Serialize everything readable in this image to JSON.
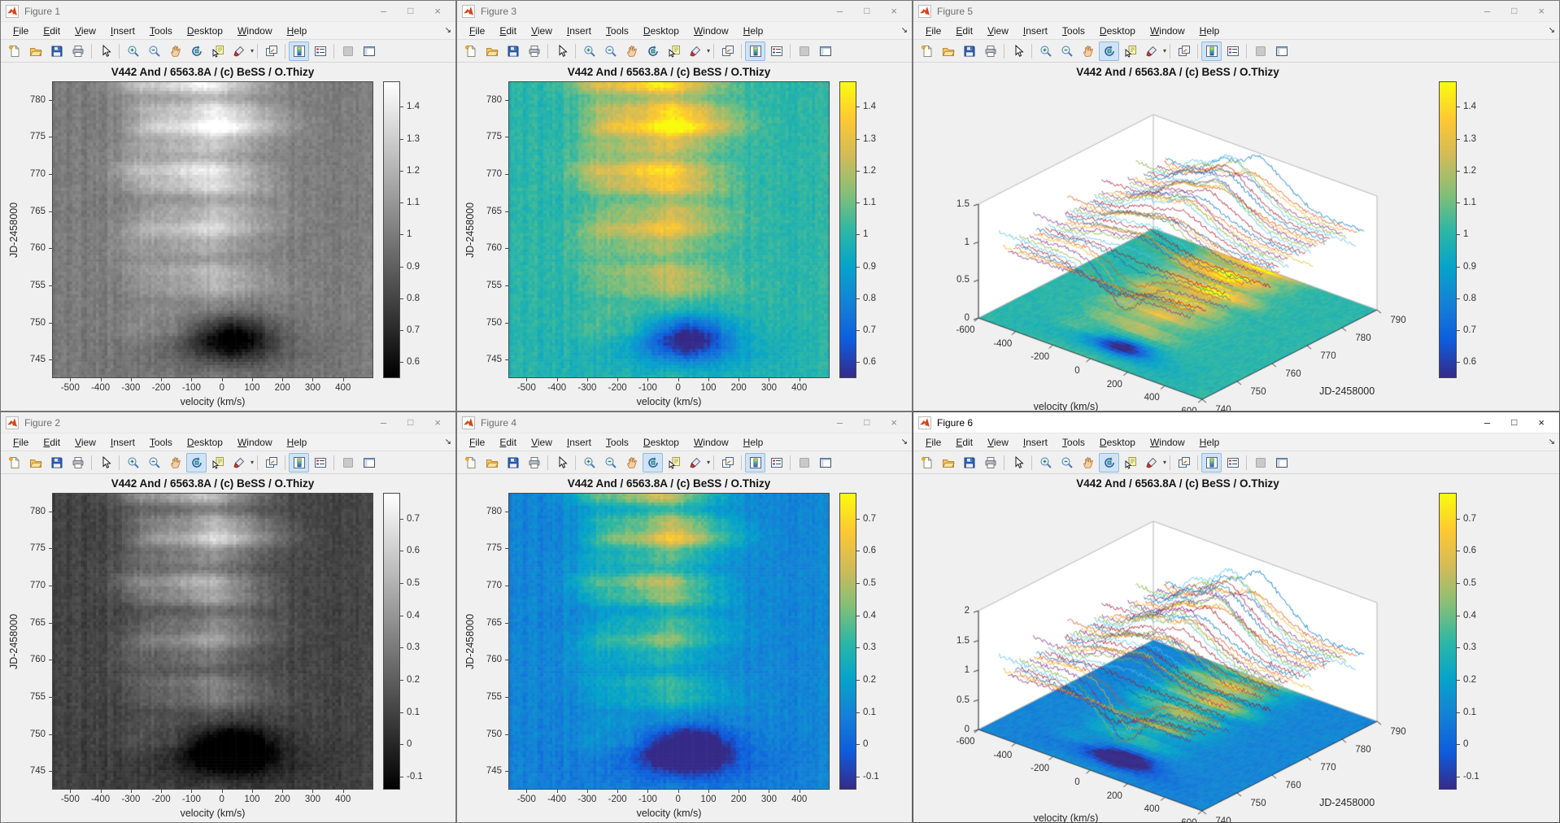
{
  "shared": {
    "menu_items": [
      "File",
      "Edit",
      "View",
      "Insert",
      "Tools",
      "Desktop",
      "Window",
      "Help"
    ],
    "menu_overflow_glyph": "↘",
    "dropdown_caret": "▾",
    "window_buttons": {
      "minimize": "–",
      "maximize": "□",
      "close": "×"
    },
    "toolbar_buttons": [
      "new-file",
      "open-folder",
      "save",
      "print",
      "separator",
      "cursor",
      "separator",
      "zoom-in",
      "zoom-out",
      "pan",
      "rotate-3d",
      "data-cursor",
      "brush",
      "separator",
      "link-plots",
      "separator",
      "insert-colorbar",
      "insert-legend",
      "separator",
      "hide-plot-tools",
      "show-plot-tools"
    ],
    "matlab_accent": "#d2451e",
    "toolbar_highlight": "#cfe3f6",
    "trace_colors": [
      "#0072BD",
      "#D95319",
      "#EDB120",
      "#7E2F8E",
      "#77AC30",
      "#4DBEEE",
      "#A2142F"
    ]
  },
  "windows": [
    {
      "title": "Figure 1",
      "active": false,
      "tool_active": [
        "insert-colorbar"
      ],
      "tool_disabled": [
        "hide-plot-tools"
      ],
      "chart_data": {
        "type": "heatmap",
        "colormap": "gray",
        "title": "V442 And / 6563.8A / (c) BeSS / O.Thizy",
        "xlabel": "velocity (km/s)",
        "ylabel": "JD-2458000",
        "xlim": [
          -560,
          500
        ],
        "ylim": [
          742.5,
          782.5
        ],
        "clim": [
          0.55,
          1.48
        ],
        "x_ticks": [
          -500,
          -400,
          -300,
          -200,
          -100,
          0,
          100,
          200,
          300,
          400
        ],
        "y_ticks": [
          745,
          750,
          755,
          760,
          765,
          770,
          775,
          780
        ],
        "colorbar_ticks": [
          0.6,
          0.7,
          0.8,
          0.9,
          1,
          1.1,
          1.2,
          1.3,
          1.4
        ],
        "value_offset": 0,
        "description": "Halpha line dynamical spectrum; bright emission streak near -100..0 km/s strengthening toward JD 780, dark absorption patch near JD 747-749"
      }
    },
    {
      "title": "Figure 3",
      "active": false,
      "tool_active": [
        "insert-colorbar"
      ],
      "tool_disabled": [
        "hide-plot-tools"
      ],
      "chart_data": {
        "type": "heatmap",
        "colormap": "parula",
        "title": "V442 And / 6563.8A / (c) BeSS / O.Thizy",
        "xlabel": "velocity (km/s)",
        "ylabel": "JD-2458000",
        "xlim": [
          -560,
          500
        ],
        "ylim": [
          742.5,
          782.5
        ],
        "clim": [
          0.55,
          1.48
        ],
        "x_ticks": [
          -500,
          -400,
          -300,
          -200,
          -100,
          0,
          100,
          200,
          300,
          400
        ],
        "y_ticks": [
          745,
          750,
          755,
          760,
          765,
          770,
          775,
          780
        ],
        "colorbar_ticks": [
          0.6,
          0.7,
          0.8,
          0.9,
          1,
          1.1,
          1.2,
          1.3,
          1.4
        ],
        "value_offset": 0,
        "description": "Same dynamical spectrum as Figure 1 rendered with parula colormap"
      }
    },
    {
      "title": "Figure 5",
      "active": false,
      "tool_active": [
        "rotate-3d",
        "insert-colorbar"
      ],
      "tool_disabled": [
        "hide-plot-tools"
      ],
      "chart_data": {
        "type": "surface3d",
        "colormap": "parula",
        "title": "V442 And / 6563.8A / (c) BeSS / O.Thizy",
        "xlabel": "velocity (km/s)",
        "ylabel": "JD-2458000",
        "xlim": [
          -600,
          600
        ],
        "ylim": [
          740,
          790
        ],
        "zlim": [
          0,
          1.5
        ],
        "clim": [
          0.55,
          1.48
        ],
        "x_ticks": [
          -600,
          -400,
          -200,
          0,
          200,
          400,
          600
        ],
        "y_ticks": [
          740,
          750,
          760,
          770,
          780,
          790
        ],
        "z_ticks": [
          0,
          0.5,
          1,
          1.5
        ],
        "colorbar_ticks": [
          0.6,
          0.7,
          0.8,
          0.9,
          1,
          1.1,
          1.2,
          1.3,
          1.4
        ],
        "value_offset": 0,
        "n_traces": 46,
        "description": "3D waterfall of normalized spectra above flat heatmap floor; emission ridge grows with JD"
      }
    },
    {
      "title": "Figure 2",
      "active": false,
      "tool_active": [
        "rotate-3d",
        "insert-colorbar"
      ],
      "tool_disabled": [
        "hide-plot-tools"
      ],
      "chart_data": {
        "type": "heatmap",
        "colormap": "gray",
        "title": "V442 And / 6563.8A / (c) BeSS / O.Thizy",
        "xlabel": "velocity (km/s)",
        "ylabel": "JD-2458000",
        "xlim": [
          -560,
          500
        ],
        "ylim": [
          742.5,
          782.5
        ],
        "clim": [
          -0.14,
          0.78
        ],
        "x_ticks": [
          -500,
          -400,
          -300,
          -200,
          -100,
          0,
          100,
          200,
          300,
          400
        ],
        "y_ticks": [
          745,
          750,
          755,
          760,
          765,
          770,
          775,
          780
        ],
        "colorbar_ticks": [
          -0.1,
          0,
          0.1,
          0.2,
          0.3,
          0.4,
          0.5,
          0.6,
          0.7
        ],
        "value_offset": -0.9,
        "description": "Continuum-subtracted dynamical spectrum (residual intensity)"
      }
    },
    {
      "title": "Figure 4",
      "active": false,
      "tool_active": [
        "rotate-3d",
        "insert-colorbar"
      ],
      "tool_disabled": [
        "hide-plot-tools"
      ],
      "chart_data": {
        "type": "heatmap",
        "colormap": "parula",
        "title": "V442 And / 6563.8A / (c) BeSS / O.Thizy",
        "xlabel": "velocity (km/s)",
        "ylabel": "JD-2458000",
        "xlim": [
          -560,
          500
        ],
        "ylim": [
          742.5,
          782.5
        ],
        "clim": [
          -0.14,
          0.78
        ],
        "x_ticks": [
          -500,
          -400,
          -300,
          -200,
          -100,
          0,
          100,
          200,
          300,
          400
        ],
        "y_ticks": [
          745,
          750,
          755,
          760,
          765,
          770,
          775,
          780
        ],
        "colorbar_ticks": [
          -0.1,
          0,
          0.1,
          0.2,
          0.3,
          0.4,
          0.5,
          0.6,
          0.7
        ],
        "value_offset": -0.9,
        "description": "Continuum-subtracted dynamical spectrum, parula colormap"
      }
    },
    {
      "title": "Figure 6",
      "active": true,
      "tool_active": [
        "rotate-3d",
        "insert-colorbar"
      ],
      "tool_disabled": [
        "hide-plot-tools"
      ],
      "chart_data": {
        "type": "surface3d",
        "colormap": "parula",
        "title": "V442 And / 6563.8A / (c) BeSS / O.Thizy",
        "xlabel": "velocity (km/s)",
        "ylabel": "JD-2458000",
        "xlim": [
          -600,
          600
        ],
        "ylim": [
          740,
          790
        ],
        "zlim": [
          0,
          2
        ],
        "clim": [
          -0.14,
          0.78
        ],
        "x_ticks": [
          -600,
          -400,
          -200,
          0,
          200,
          400,
          600
        ],
        "y_ticks": [
          740,
          750,
          760,
          770,
          780,
          790
        ],
        "z_ticks": [
          0,
          0.5,
          1,
          1.5,
          2
        ],
        "colorbar_ticks": [
          -0.1,
          0,
          0.1,
          0.2,
          0.3,
          0.4,
          0.5,
          0.6,
          0.7
        ],
        "value_offset": -0.9,
        "n_traces": 46,
        "description": "3D waterfall of residual spectra above dark-blue heatmap floor with green emission streak"
      }
    }
  ]
}
